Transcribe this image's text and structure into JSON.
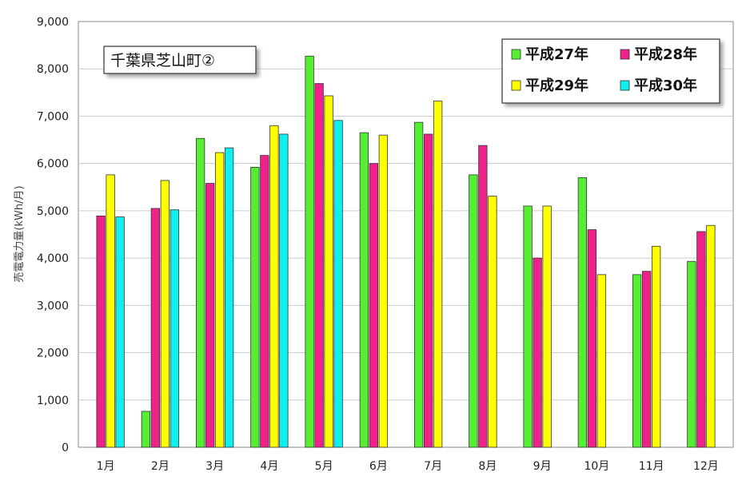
{
  "chart_data": {
    "type": "bar",
    "title": "千葉県芝山町②",
    "ylabel": "売電電力量(kWh/月)",
    "xlabel": "",
    "categories": [
      "1月",
      "2月",
      "3月",
      "4月",
      "5月",
      "6月",
      "7月",
      "8月",
      "9月",
      "10月",
      "11月",
      "12月"
    ],
    "ylim": [
      0,
      9000
    ],
    "yticks": [
      "0",
      "1,000",
      "2,000",
      "3,000",
      "4,000",
      "5,000",
      "6,000",
      "7,000",
      "8,000",
      "9,000"
    ],
    "grid": true,
    "legend_position": "top-right",
    "series": [
      {
        "name": "平成27年",
        "color": "#55ee33",
        "values": [
          null,
          760,
          6530,
          5920,
          8270,
          6650,
          6870,
          5760,
          5100,
          5700,
          3650,
          3930
        ]
      },
      {
        "name": "平成28年",
        "color": "#ee2288",
        "values": [
          4890,
          5050,
          5580,
          6170,
          7690,
          6000,
          6620,
          6380,
          4000,
          4600,
          3720,
          4560
        ]
      },
      {
        "name": "平成29年",
        "color": "#ffff00",
        "values": [
          5760,
          5640,
          6230,
          6800,
          7430,
          6600,
          7320,
          5310,
          5100,
          3650,
          4250,
          4690
        ]
      },
      {
        "name": "平成30年",
        "color": "#11eeee",
        "values": [
          4870,
          5020,
          6330,
          6620,
          6910,
          null,
          null,
          null,
          null,
          null,
          null,
          null
        ]
      }
    ]
  }
}
